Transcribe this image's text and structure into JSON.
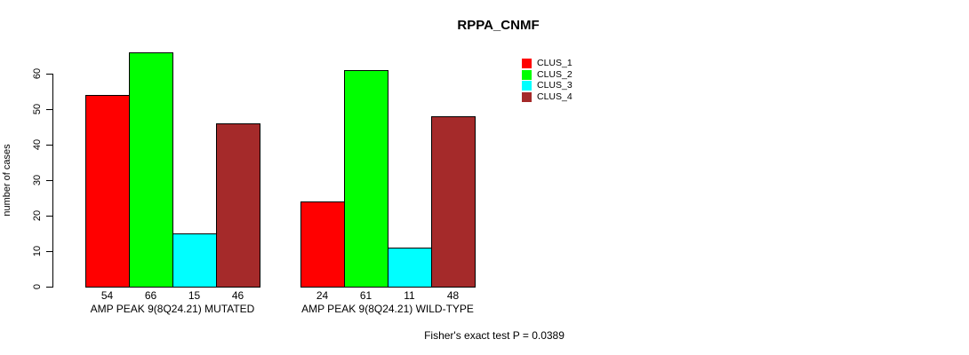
{
  "title": "RPPA_CNMF",
  "chart_data": {
    "type": "bar",
    "title": "RPPA_CNMF",
    "ylabel": "number of cases",
    "xlabel": "",
    "categories": [
      "AMP PEAK 9(8Q24.21) MUTATED",
      "AMP PEAK 9(8Q24.21) WILD-TYPE"
    ],
    "series": [
      {
        "name": "CLUS_1",
        "color": "#FF0000",
        "values": [
          54,
          24
        ]
      },
      {
        "name": "CLUS_2",
        "color": "#00FF00",
        "values": [
          66,
          61
        ]
      },
      {
        "name": "CLUS_3",
        "color": "#00FFFF",
        "values": [
          15,
          11
        ]
      },
      {
        "name": "CLUS_4",
        "color": "#A52A2A",
        "values": [
          46,
          48
        ]
      }
    ],
    "yticks": [
      0,
      10,
      20,
      30,
      40,
      50,
      60
    ],
    "ylim": [
      0,
      66
    ],
    "grid": false,
    "value_labels_shown": true,
    "legend_position": "top-right",
    "footnote": "Fisher's exact test P = 0.0389"
  },
  "colors": {
    "axis": "#000000",
    "text": "#000000",
    "background": "#FFFFFF"
  }
}
